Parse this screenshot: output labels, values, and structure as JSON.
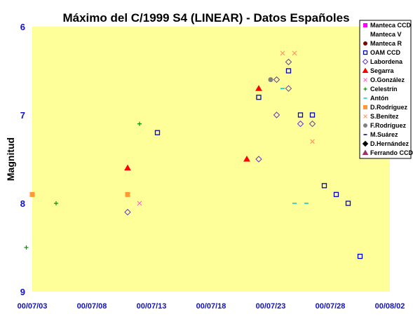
{
  "chart_data": {
    "type": "scatter",
    "title": "Máximo del C/1999 S4 (LINEAR) - Datos Españoles",
    "xlabel": "",
    "ylabel": "Magnitud",
    "x_is_date": true,
    "xlim": [
      "2000-07-03",
      "2000-08-02"
    ],
    "ylim": [
      6,
      9
    ],
    "y_inverted": true,
    "grid": false,
    "plot_background": "#ffff99",
    "legend_position": "right",
    "x_tick_labels": [
      "00/07/03",
      "00/07/08",
      "00/07/13",
      "00/07/18",
      "00/07/23",
      "00/07/28",
      "00/08/02"
    ],
    "y_tick_labels": [
      "6",
      "7",
      "8",
      "9"
    ],
    "y_ticks": [
      6,
      7,
      8,
      9
    ],
    "series": [
      {
        "name": "Manteca CCD",
        "marker": "square-filled",
        "color": "#ff00ff",
        "points": []
      },
      {
        "name": "Manteca V",
        "marker": "none",
        "color": "#808080",
        "points": []
      },
      {
        "name": "Manteca R",
        "marker": "circle-filled",
        "color": "#800000",
        "points": []
      },
      {
        "name": "OAM CCD",
        "marker": "square-open",
        "color": "#0000cc",
        "points": [
          [
            "2000-07-13 12:00",
            7.2
          ],
          [
            "2000-07-22",
            6.8
          ],
          [
            "2000-07-24 12:00",
            6.5
          ],
          [
            "2000-07-25 12:00",
            7.0
          ],
          [
            "2000-07-26 12:00",
            7.0
          ],
          [
            "2000-07-27 12:00",
            7.8
          ],
          [
            "2000-07-28 12:00",
            7.9
          ],
          [
            "2000-07-29 12:00",
            8.0
          ],
          [
            "2000-07-30 12:00",
            8.6
          ]
        ]
      },
      {
        "name": "Labordena",
        "marker": "diamond-open",
        "color": "#6633cc",
        "points": [
          [
            "2000-07-11",
            8.1
          ],
          [
            "2000-07-22",
            7.5
          ],
          [
            "2000-07-23 12:00",
            6.6
          ],
          [
            "2000-07-23 12:00",
            7.0
          ],
          [
            "2000-07-24 12:00",
            6.4
          ],
          [
            "2000-07-24 12:00",
            6.7
          ],
          [
            "2000-07-25 12:00",
            7.1
          ],
          [
            "2000-07-26 12:00",
            7.1
          ]
        ]
      },
      {
        "name": "Segarra",
        "marker": "triangle-filled",
        "color": "#ff0000",
        "points": [
          [
            "2000-07-11",
            7.6
          ],
          [
            "2000-07-21",
            7.5
          ],
          [
            "2000-07-22",
            6.7
          ]
        ]
      },
      {
        "name": "O.González",
        "marker": "x",
        "color": "#ff66cc",
        "points": [
          [
            "2000-07-12",
            8.0
          ]
        ]
      },
      {
        "name": "Celestrín",
        "marker": "plus",
        "color": "#009900",
        "points": [
          [
            "2000-07-02 12:00",
            8.5
          ],
          [
            "2000-07-05",
            8.0
          ],
          [
            "2000-07-12",
            7.1
          ]
        ]
      },
      {
        "name": "Antón",
        "marker": "dash",
        "color": "#00cccc",
        "points": [
          [
            "2000-07-24",
            6.7
          ],
          [
            "2000-07-25",
            8.0
          ],
          [
            "2000-07-26",
            8.0
          ]
        ]
      },
      {
        "name": "D.Rodríguez",
        "marker": "square-filled",
        "color": "#ff9933",
        "points": [
          [
            "2000-07-03",
            7.9
          ],
          [
            "2000-07-11",
            7.9
          ]
        ]
      },
      {
        "name": "S.Benítez",
        "marker": "x",
        "color": "#ff9966",
        "points": [
          [
            "2000-07-24",
            6.3
          ],
          [
            "2000-07-25",
            6.3
          ],
          [
            "2000-07-26 12:00",
            7.3
          ]
        ]
      },
      {
        "name": "F.Rodríguez",
        "marker": "circle-filled",
        "color": "#808080",
        "points": [
          [
            "2000-07-23",
            6.6
          ]
        ]
      },
      {
        "name": "M.Suárez",
        "marker": "dash",
        "color": "#000080",
        "points": []
      },
      {
        "name": "D.Hernández",
        "marker": "diamond-filled",
        "color": "#000000",
        "points": []
      },
      {
        "name": "Ferrando CCD",
        "marker": "triangle-filled",
        "color": "#993366",
        "points": []
      }
    ]
  }
}
